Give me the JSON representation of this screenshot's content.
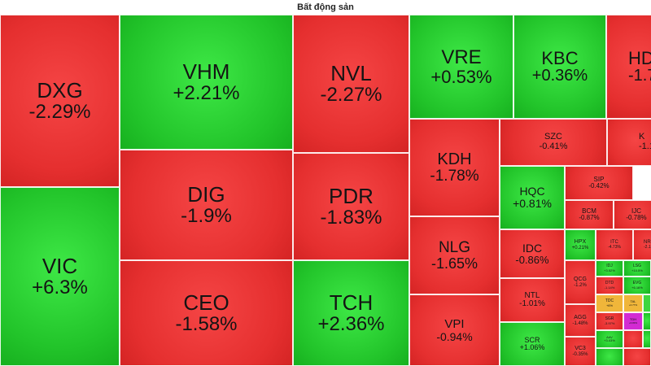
{
  "title": "Bất động sản",
  "colors": {
    "up": "#22c42a",
    "down": "#e52f2f",
    "reference": "#f0b63a",
    "ceiling": "#d32bd3"
  },
  "tiles": {
    "dxg": {
      "symbol": "DXG",
      "change": "-2.29%"
    },
    "vic": {
      "symbol": "VIC",
      "change": "+6.3%"
    },
    "vhm": {
      "symbol": "VHM",
      "change": "+2.21%"
    },
    "dig": {
      "symbol": "DIG",
      "change": "-1.9%"
    },
    "ceo": {
      "symbol": "CEO",
      "change": "-1.58%"
    },
    "nvl": {
      "symbol": "NVL",
      "change": "-2.27%"
    },
    "pdr": {
      "symbol": "PDR",
      "change": "-1.83%"
    },
    "tch": {
      "symbol": "TCH",
      "change": "+2.36%"
    },
    "vre": {
      "symbol": "VRE",
      "change": "+0.53%"
    },
    "kbc": {
      "symbol": "KBC",
      "change": "+0.36%"
    },
    "hdc": {
      "symbol": "HD",
      "change": "-1.7"
    },
    "kdh": {
      "symbol": "KDH",
      "change": "-1.78%"
    },
    "nlg": {
      "symbol": "NLG",
      "change": "-1.65%"
    },
    "vpi": {
      "symbol": "VPI",
      "change": "-0.94%"
    },
    "szc": {
      "symbol": "SZC",
      "change": "-0.41%"
    },
    "khg": {
      "symbol": "K",
      "change": "-1.1"
    },
    "hqc": {
      "symbol": "HQC",
      "change": "+0.81%"
    },
    "sip": {
      "symbol": "SIP",
      "change": "-0.42%"
    },
    "bcm": {
      "symbol": "BCM",
      "change": "-0.87%"
    },
    "ijc": {
      "symbol": "IJC",
      "change": "-0.78%"
    },
    "idc": {
      "symbol": "IDC",
      "change": "-0.86%"
    },
    "ntl": {
      "symbol": "NTL",
      "change": "-1.01%"
    },
    "scr": {
      "symbol": "SCR",
      "change": "+1.06%"
    },
    "hpx": {
      "symbol": "HPX",
      "change": "+0.21%"
    },
    "itc": {
      "symbol": "ITC",
      "change": "-4.73%"
    },
    "nrc": {
      "symbol": "NR",
      "change": "-2.1"
    },
    "qcg": {
      "symbol": "QCG",
      "change": "-1.2%"
    },
    "agg": {
      "symbol": "AGG",
      "change": "-1.48%"
    },
    "vc3": {
      "symbol": "VC3",
      "change": "-0.35%"
    },
    "idj": {
      "symbol": "IDJ",
      "change": "+3.52%"
    },
    "lsg": {
      "symbol": "LSG",
      "change": "+10.5%"
    },
    "dtd": {
      "symbol": "DTD",
      "change": "-1.14%"
    },
    "evg": {
      "symbol": "EVG",
      "change": "+6.16%"
    },
    "tdc": {
      "symbol": "TDC",
      "change": "+6%"
    },
    "tal": {
      "symbol": "TAL",
      "change": "+0.77%"
    },
    "sgr": {
      "symbol": "SGR",
      "change": "-3.97%"
    },
    "tdh": {
      "symbol": "TDH",
      "change": "+6.83%"
    },
    "aav": {
      "symbol": "AAV",
      "change": "+3.03%"
    },
    "cap": {
      "symbol": "",
      "change": ""
    }
  }
}
